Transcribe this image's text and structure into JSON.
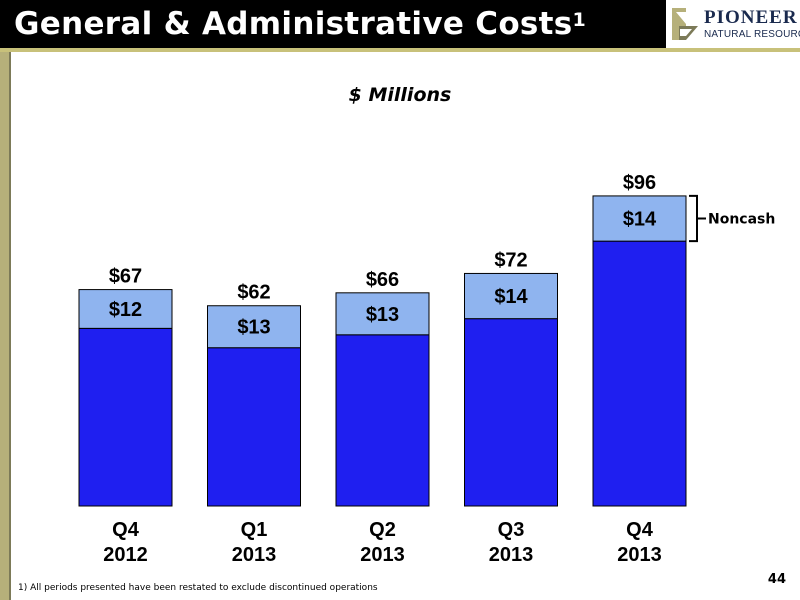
{
  "header": {
    "title": "General & Administrative Costs",
    "title_sup": "1",
    "logo_name": "PIONEER",
    "logo_sub": "NATURAL RESOURCES"
  },
  "colors": {
    "cash_bar": "#1f1ff0",
    "noncash_bar": "#8fb4ef",
    "title_bg": "#000000",
    "accent": "#c8c17a"
  },
  "chart_data": {
    "type": "bar",
    "stacked": true,
    "unit_label": "$ Millions",
    "categories": [
      [
        "Q4",
        "2012"
      ],
      [
        "Q1",
        "2013"
      ],
      [
        "Q2",
        "2013"
      ],
      [
        "Q3",
        "2013"
      ],
      [
        "Q4",
        "2013"
      ]
    ],
    "totals": [
      67,
      62,
      66,
      72,
      96
    ],
    "total_labels": [
      "$67",
      "$62",
      "$66",
      "$72",
      "$96"
    ],
    "series": [
      {
        "values": [
          55,
          49,
          53,
          58,
          82
        ]
      },
      {
        "name": "Noncash",
        "values": [
          12,
          13,
          13,
          14,
          14
        ],
        "labels": [
          "$12",
          "$13",
          "$13",
          "$14",
          "$14"
        ]
      }
    ],
    "legend_label": "Noncash",
    "ylim": [
      0,
      100
    ]
  },
  "footer": {
    "footnote": "1)  All periods presented have been restated to exclude discontinued operations",
    "page_number": "44"
  }
}
